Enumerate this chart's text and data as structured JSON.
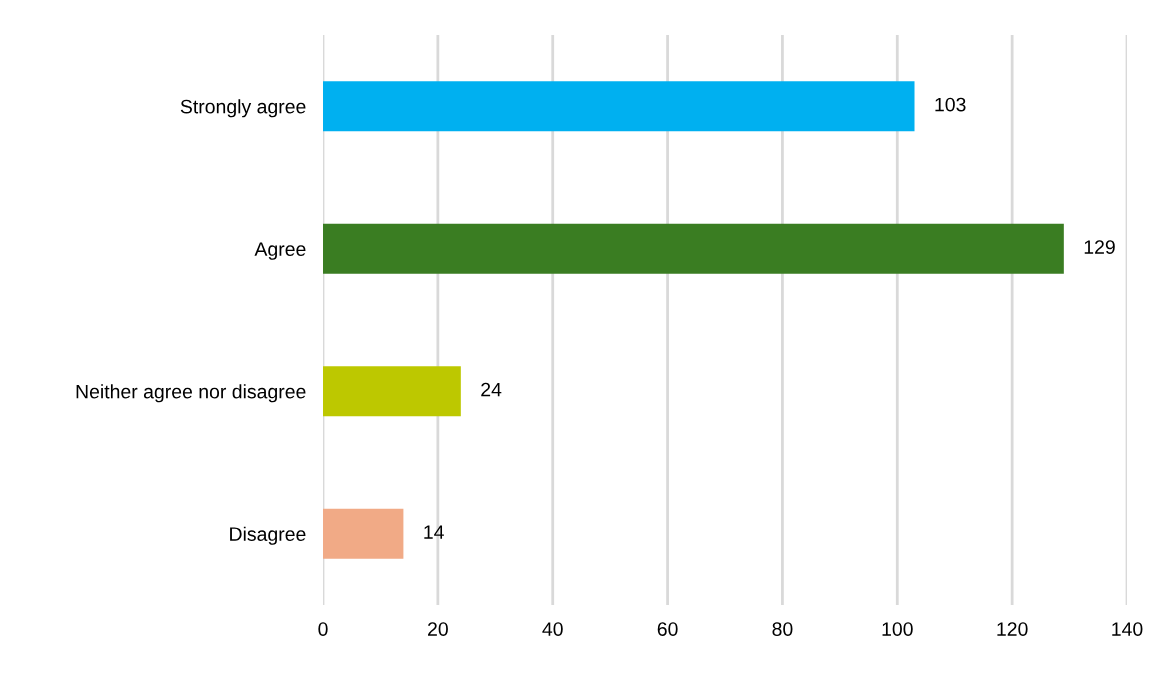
{
  "chart_data": {
    "type": "bar",
    "orientation": "horizontal",
    "categories": [
      "Strongly agree",
      "Agree",
      "Neither agree nor disagree",
      "Disagree"
    ],
    "values": [
      103,
      129,
      24,
      14
    ],
    "colors": [
      "#00b0f0",
      "#3a7d22",
      "#bdc800",
      "#f1aa86"
    ],
    "xlim": [
      0,
      140
    ],
    "xticks": [
      0,
      20,
      40,
      60,
      80,
      100,
      120,
      140
    ],
    "grid": "x",
    "data_labels": true,
    "legend": false
  }
}
